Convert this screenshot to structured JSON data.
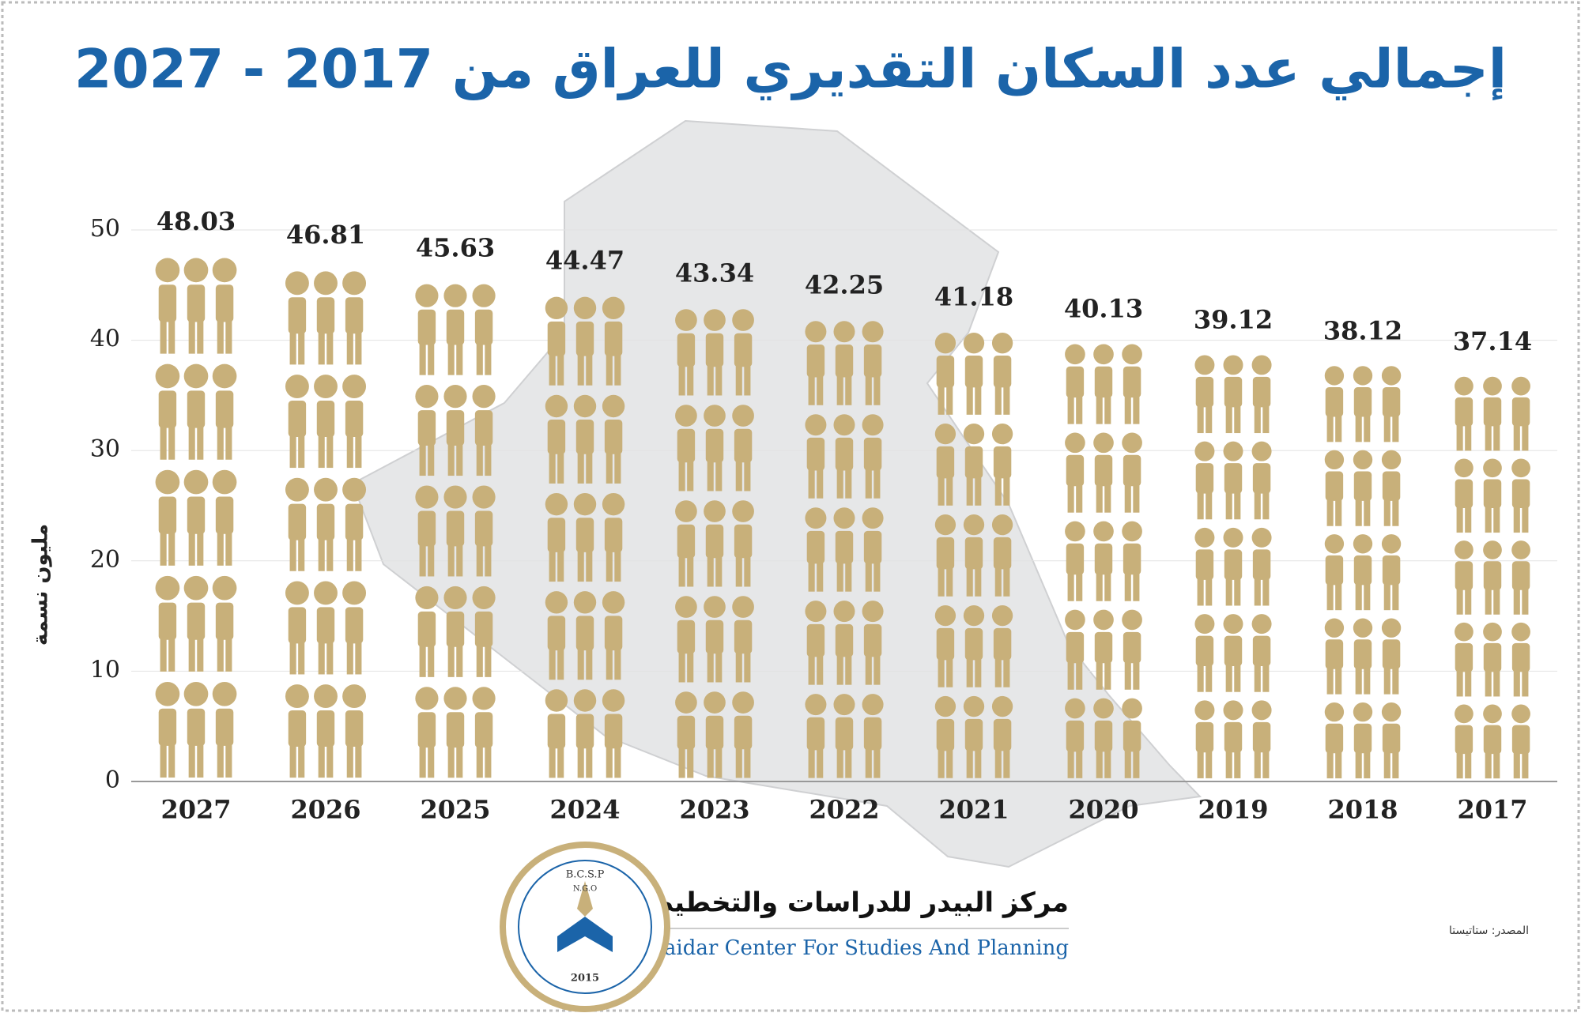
{
  "chart_data": {
    "type": "bar",
    "title": "إجمالي عدد السكان التقديري للعراق من 2017 - 2027",
    "y_label": "مليون نسمة",
    "categories": [
      "2027",
      "2026",
      "2025",
      "2024",
      "2023",
      "2022",
      "2021",
      "2020",
      "2019",
      "2018",
      "2017"
    ],
    "values": [
      48.03,
      46.81,
      45.63,
      44.47,
      43.34,
      42.25,
      41.18,
      40.13,
      39.12,
      38.12,
      37.14
    ],
    "color": "#c8b07a",
    "ylim": [
      0,
      50
    ],
    "yticks": [
      0,
      10,
      20,
      30,
      40,
      50
    ],
    "grid": true
  },
  "footer": {
    "org_ar": "مركز البيدر للدراسات والتخطيط",
    "org_en": "Al-Baidar Center For Studies And Planning",
    "source": "المصدر: ستاتيستا",
    "logo_code": "B.C.S.P",
    "logo_ngo": "N.G.O",
    "logo_year": "2015"
  }
}
